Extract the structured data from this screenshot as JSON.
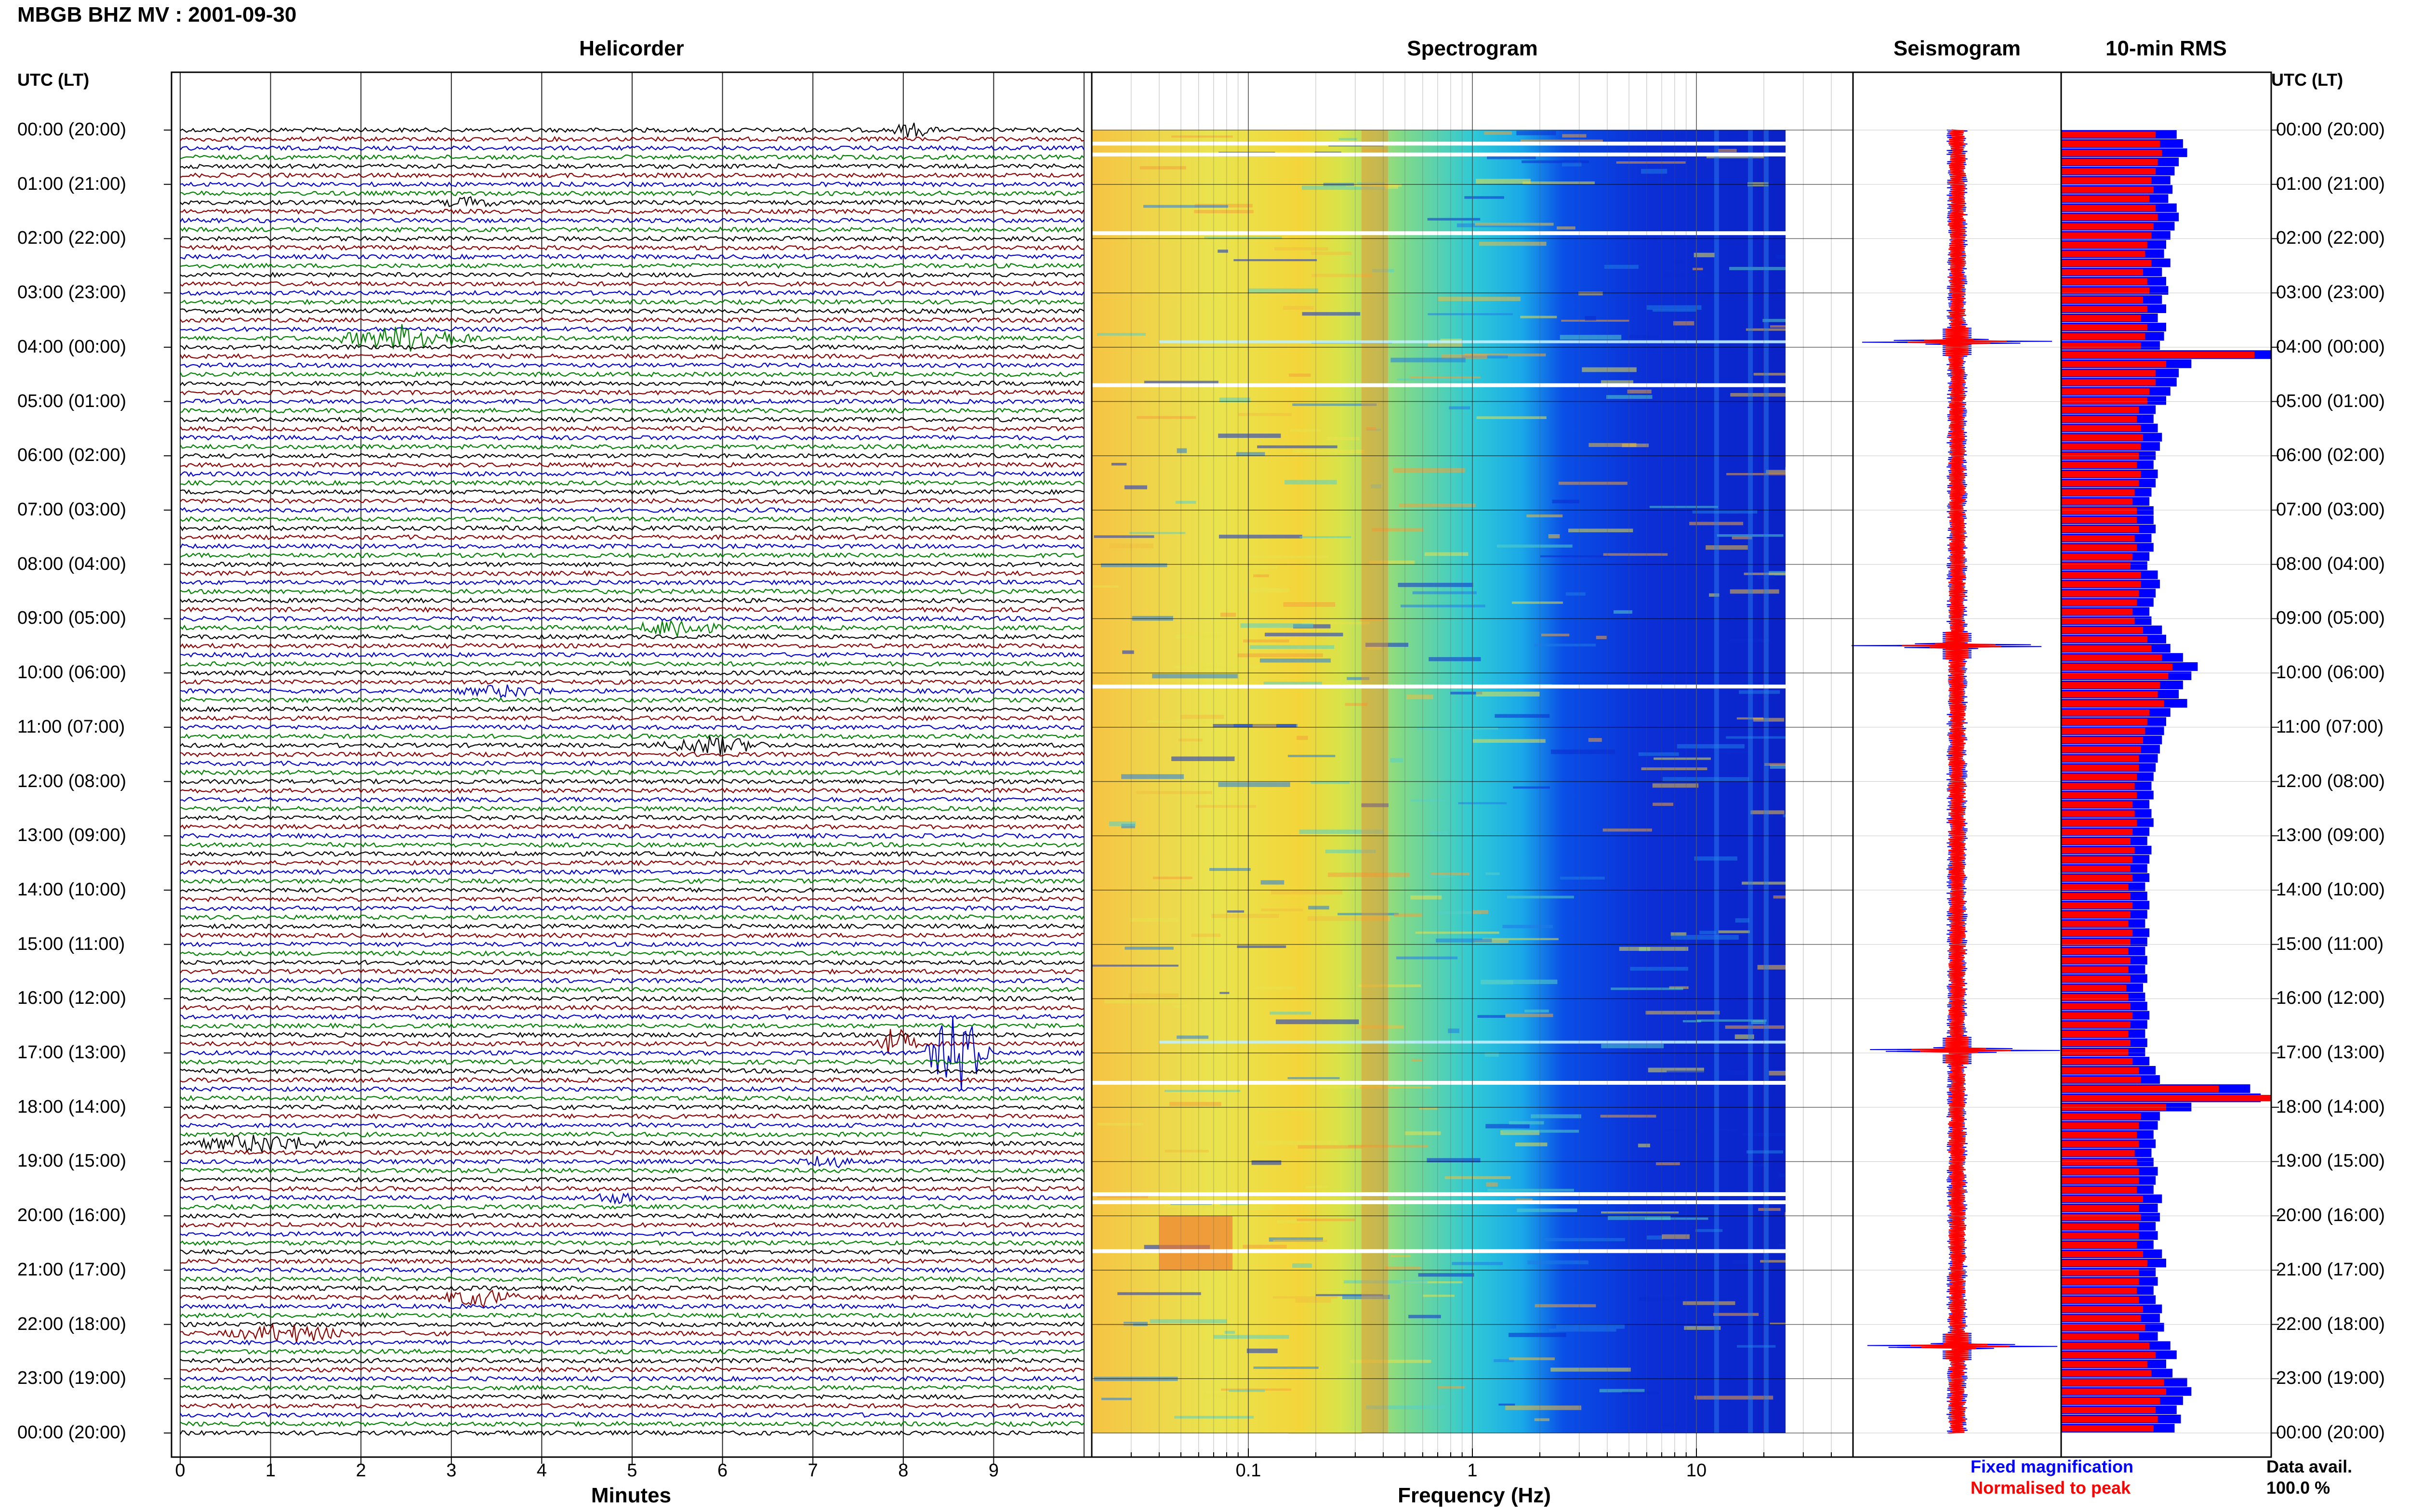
{
  "header": {
    "title": "MBGB BHZ MV : 2001-09-30",
    "utc_label_left": "UTC (LT)",
    "utc_label_right": "UTC (LT)"
  },
  "panels": {
    "helicorder": "Helicorder",
    "spectrogram": "Spectrogram",
    "seismogram": "Seismogram",
    "rms": "10-min RMS"
  },
  "time_labels": [
    "00:00 (20:00)",
    "01:00 (21:00)",
    "02:00 (22:00)",
    "03:00 (23:00)",
    "04:00 (00:00)",
    "05:00 (01:00)",
    "06:00 (02:00)",
    "07:00 (03:00)",
    "08:00 (04:00)",
    "09:00 (05:00)",
    "10:00 (06:00)",
    "11:00 (07:00)",
    "12:00 (08:00)",
    "13:00 (09:00)",
    "14:00 (10:00)",
    "15:00 (11:00)",
    "16:00 (12:00)",
    "17:00 (13:00)",
    "18:00 (14:00)",
    "19:00 (15:00)",
    "20:00 (16:00)",
    "21:00 (17:00)",
    "22:00 (18:00)",
    "23:00 (19:00)",
    "00:00 (20:00)"
  ],
  "legend": {
    "fixed": "Fixed magnification",
    "normalised": "Normalised to peak",
    "fixed_color": "#0000ff",
    "normalised_color": "#ff0000",
    "data_avail_label": "Data avail.",
    "data_avail_value": "100.0 %"
  },
  "chart_data": [
    {
      "type": "line",
      "name": "Helicorder",
      "title": "Helicorder",
      "xlabel": "Minutes",
      "x_ticks": [
        0,
        1,
        2,
        3,
        4,
        5,
        6,
        7,
        8,
        9
      ],
      "xlim": [
        0,
        10
      ],
      "ylim_hours_utc": [
        0,
        24
      ],
      "traces_per_hour": 6,
      "trace_colors": [
        "#000000",
        "#8b0000",
        "#0000cd",
        "#008000"
      ],
      "events": [
        {
          "hour": 16.83,
          "minute_start": 7.6,
          "minute_end": 8.2,
          "amplitude": 1.5,
          "color": "#000000"
        },
        {
          "hour": 17.0,
          "minute_start": 8.2,
          "minute_end": 9.0,
          "amplitude": 4.2,
          "color": "#8b0000"
        },
        {
          "hour": 9.17,
          "minute_start": 5.0,
          "minute_end": 6.0,
          "amplitude": 1.0,
          "color": "#008000"
        },
        {
          "hour": 3.83,
          "minute_start": 1.6,
          "minute_end": 3.4,
          "amplitude": 1.2,
          "color": "#008000"
        },
        {
          "hour": 18.67,
          "minute_start": 0.0,
          "minute_end": 1.8,
          "amplitude": 0.8,
          "color": "#000000"
        },
        {
          "hour": 21.5,
          "minute_start": 2.8,
          "minute_end": 3.8,
          "amplitude": 0.8,
          "color": "#8b0000"
        },
        {
          "hour": 22.17,
          "minute_start": 0.4,
          "minute_end": 2.0,
          "amplitude": 0.8,
          "color": "#008000"
        },
        {
          "hour": 11.33,
          "minute_start": 5.2,
          "minute_end": 6.6,
          "amplitude": 0.8,
          "color": "#000000"
        },
        {
          "hour": 0.0,
          "minute_start": 7.8,
          "minute_end": 8.4,
          "amplitude": 0.6,
          "color": "#000000"
        },
        {
          "hour": 1.33,
          "minute_start": 2.8,
          "minute_end": 3.6,
          "amplitude": 0.4,
          "color": "#000000"
        },
        {
          "hour": 10.33,
          "minute_start": 3.0,
          "minute_end": 4.2,
          "amplitude": 0.5,
          "color": "#0000cd"
        },
        {
          "hour": 19.0,
          "minute_start": 6.8,
          "minute_end": 7.5,
          "amplitude": 0.6,
          "color": "#0000cd"
        },
        {
          "hour": 19.67,
          "minute_start": 4.4,
          "minute_end": 5.2,
          "amplitude": 0.4,
          "color": "#0000cd"
        }
      ]
    },
    {
      "type": "heatmap",
      "name": "Spectrogram",
      "title": "Spectrogram",
      "xlabel": "Frequency (Hz)",
      "x_scale": "log",
      "x_ticks": [
        0.1,
        1,
        10
      ],
      "xlim": [
        0.02,
        50
      ],
      "data_max_freq": 25,
      "ylim_hours_utc": [
        0,
        24
      ],
      "gaps_hours": [
        0.25,
        0.45,
        1.9,
        4.7,
        10.25,
        17.55,
        19.6,
        19.75,
        20.65
      ],
      "bright_lines_hours": [
        3.9,
        16.8
      ],
      "notes": "yellow/orange energy below ~0.5 Hz with red band near 0.3-0.4 Hz, cyan 0.5-2 Hz, blue above ~2 Hz"
    },
    {
      "type": "line",
      "name": "Seismogram",
      "title": "Seismogram",
      "ylim_hours_utc": [
        0,
        24
      ],
      "spikes_hours": [
        3.9,
        16.95,
        9.5,
        22.4
      ]
    },
    {
      "type": "bar",
      "name": "10-min RMS",
      "title": "10-min RMS",
      "orientation": "horizontal",
      "ylim_hours_utc": [
        0,
        24
      ],
      "series": [
        {
          "name": "Fixed magnification",
          "color": "#0000ff"
        },
        {
          "name": "Normalised to peak",
          "color": "#ff0000"
        }
      ],
      "bins_per_hour": 6,
      "fixed_values": [
        0.55,
        0.58,
        0.6,
        0.56,
        0.54,
        0.52,
        0.53,
        0.51,
        0.55,
        0.56,
        0.54,
        0.52,
        0.5,
        0.49,
        0.52,
        0.48,
        0.5,
        0.51,
        0.48,
        0.5,
        0.46,
        0.5,
        0.49,
        0.47,
        1.0,
        0.62,
        0.56,
        0.55,
        0.52,
        0.5,
        0.45,
        0.44,
        0.46,
        0.48,
        0.47,
        0.45,
        0.44,
        0.46,
        0.45,
        0.43,
        0.42,
        0.44,
        0.44,
        0.45,
        0.43,
        0.44,
        0.42,
        0.41,
        0.46,
        0.47,
        0.45,
        0.44,
        0.42,
        0.43,
        0.48,
        0.5,
        0.52,
        0.58,
        0.65,
        0.62,
        0.58,
        0.56,
        0.6,
        0.52,
        0.5,
        0.49,
        0.48,
        0.47,
        0.46,
        0.45,
        0.44,
        0.43,
        0.44,
        0.42,
        0.43,
        0.44,
        0.42,
        0.41,
        0.43,
        0.42,
        0.41,
        0.42,
        0.4,
        0.41,
        0.42,
        0.41,
        0.4,
        0.42,
        0.41,
        0.4,
        0.41,
        0.4,
        0.41,
        0.39,
        0.4,
        0.41,
        0.42,
        0.41,
        0.4,
        0.41,
        0.4,
        0.42,
        0.45,
        0.47,
        0.9,
        0.95,
        0.62,
        0.47,
        0.46,
        0.44,
        0.45,
        0.43,
        0.44,
        0.46,
        0.45,
        0.44,
        0.48,
        0.46,
        0.47,
        0.45,
        0.46,
        0.44,
        0.48,
        0.5,
        0.45,
        0.46,
        0.44,
        0.45,
        0.48,
        0.47,
        0.49,
        0.46,
        0.52,
        0.55,
        0.5,
        0.53,
        0.6,
        0.62,
        0.58,
        0.55,
        0.57,
        0.54
      ],
      "normalised_values": [
        0.45,
        0.47,
        0.48,
        0.46,
        0.45,
        0.43,
        0.44,
        0.42,
        0.45,
        0.46,
        0.44,
        0.43,
        0.41,
        0.4,
        0.43,
        0.39,
        0.41,
        0.42,
        0.39,
        0.41,
        0.38,
        0.41,
        0.4,
        0.38,
        0.92,
        0.5,
        0.45,
        0.45,
        0.42,
        0.41,
        0.37,
        0.36,
        0.38,
        0.39,
        0.38,
        0.37,
        0.36,
        0.38,
        0.37,
        0.35,
        0.34,
        0.36,
        0.36,
        0.37,
        0.35,
        0.36,
        0.34,
        0.33,
        0.38,
        0.38,
        0.37,
        0.36,
        0.34,
        0.35,
        0.39,
        0.41,
        0.43,
        0.48,
        0.53,
        0.51,
        0.47,
        0.46,
        0.49,
        0.42,
        0.41,
        0.4,
        0.39,
        0.38,
        0.37,
        0.37,
        0.36,
        0.35,
        0.36,
        0.34,
        0.35,
        0.36,
        0.34,
        0.33,
        0.35,
        0.34,
        0.33,
        0.34,
        0.32,
        0.33,
        0.34,
        0.33,
        0.32,
        0.34,
        0.33,
        0.32,
        0.33,
        0.32,
        0.33,
        0.31,
        0.32,
        0.33,
        0.34,
        0.33,
        0.32,
        0.33,
        0.32,
        0.34,
        0.37,
        0.38,
        0.75,
        1.0,
        0.5,
        0.38,
        0.37,
        0.36,
        0.37,
        0.35,
        0.36,
        0.37,
        0.37,
        0.36,
        0.39,
        0.37,
        0.38,
        0.37,
        0.37,
        0.36,
        0.39,
        0.41,
        0.37,
        0.37,
        0.36,
        0.37,
        0.39,
        0.38,
        0.4,
        0.37,
        0.42,
        0.45,
        0.41,
        0.43,
        0.49,
        0.5,
        0.47,
        0.45,
        0.46,
        0.44
      ]
    }
  ]
}
